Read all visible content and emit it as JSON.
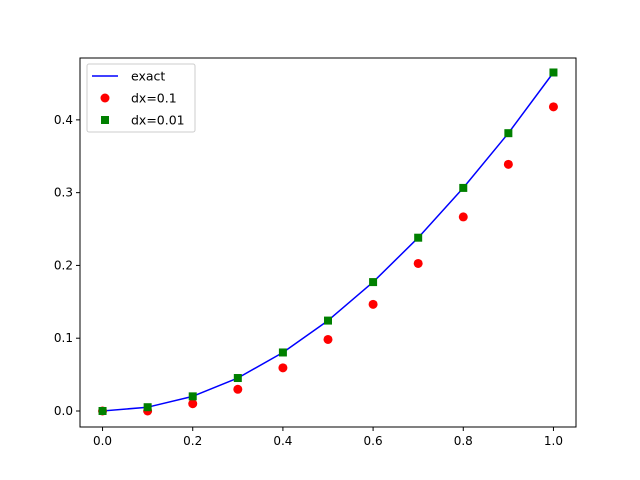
{
  "chart_data": {
    "type": "line",
    "title": "",
    "xlabel": "",
    "ylabel": "",
    "xlim": [
      -0.05,
      1.05
    ],
    "ylim": [
      -0.022,
      0.485
    ],
    "xticks": [
      0.0,
      0.2,
      0.4,
      0.6,
      0.8,
      1.0
    ],
    "xtick_labels": [
      "0.0",
      "0.2",
      "0.4",
      "0.6",
      "0.8",
      "1.0"
    ],
    "yticks": [
      0.0,
      0.1,
      0.2,
      0.3,
      0.4
    ],
    "ytick_labels": [
      "0.0",
      "0.1",
      "0.2",
      "0.3",
      "0.4"
    ],
    "grid": false,
    "legend_position": "top-left",
    "series": [
      {
        "name": "exact",
        "kind": "line",
        "color": "#0000ff",
        "x": [
          0.0,
          0.1,
          0.2,
          0.3,
          0.4,
          0.5,
          0.6,
          0.7,
          0.8,
          0.9,
          1.0
        ],
        "y": [
          0.0,
          0.0052,
          0.0201,
          0.0453,
          0.0804,
          0.1242,
          0.1771,
          0.2381,
          0.3065,
          0.3817,
          0.4651
        ]
      },
      {
        "name": "dx=0.1",
        "kind": "scatter",
        "marker": "circle",
        "color": "#ff0000",
        "x": [
          0.0,
          0.1,
          0.2,
          0.3,
          0.4,
          0.5,
          0.6,
          0.7,
          0.8,
          0.9,
          1.0
        ],
        "y": [
          0.0,
          0.0,
          0.01,
          0.0298,
          0.0593,
          0.0983,
          0.1465,
          0.2027,
          0.2667,
          0.3389,
          0.4179
        ]
      },
      {
        "name": "dx=0.01",
        "kind": "scatter",
        "marker": "square",
        "color": "#008000",
        "x": [
          0.0,
          0.1,
          0.2,
          0.3,
          0.4,
          0.5,
          0.6,
          0.7,
          0.8,
          0.9,
          1.0
        ],
        "y": [
          0.0,
          0.0052,
          0.0201,
          0.0453,
          0.0804,
          0.1242,
          0.1771,
          0.2381,
          0.3065,
          0.3817,
          0.4651
        ]
      }
    ]
  }
}
